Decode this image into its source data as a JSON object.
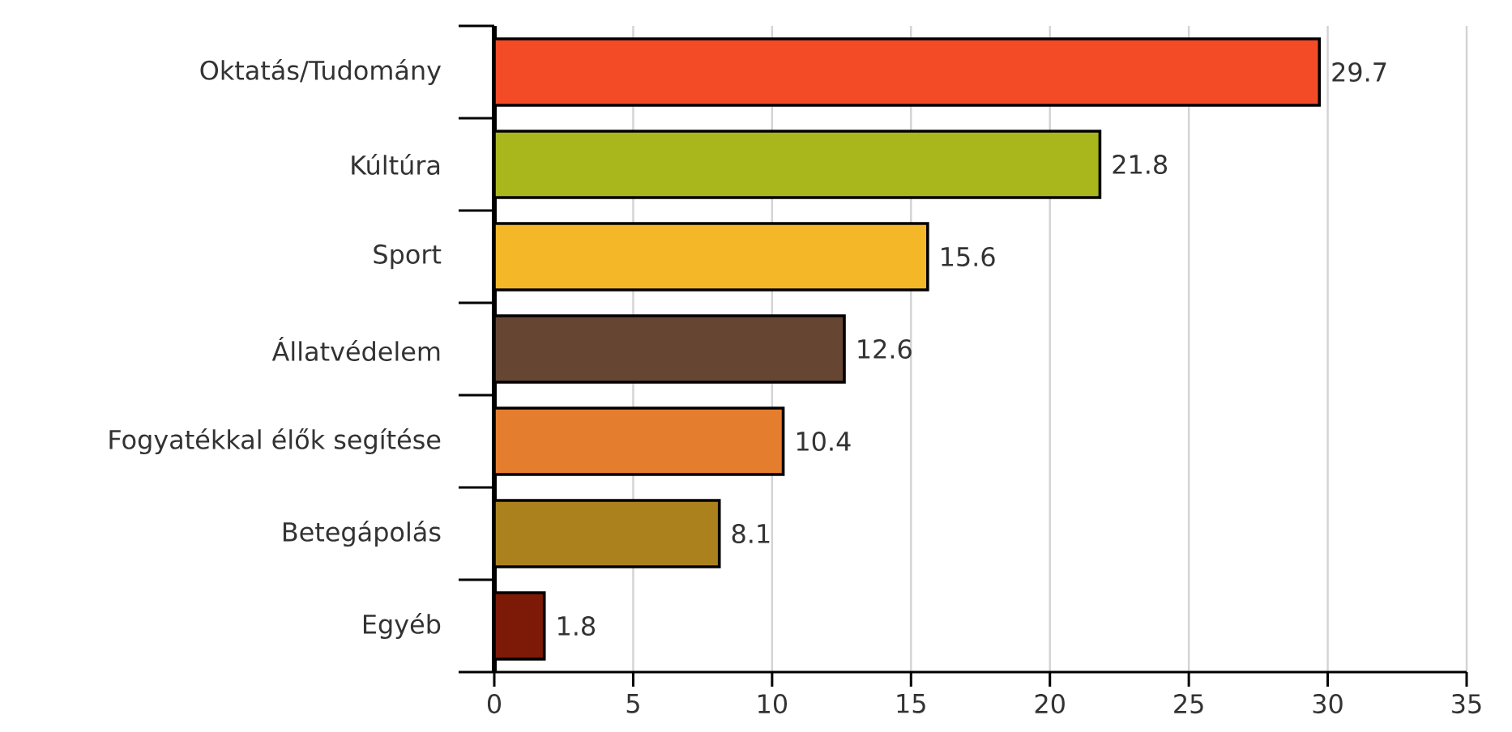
{
  "chart_data": {
    "type": "bar",
    "orientation": "horizontal",
    "categories": [
      "Oktatás/Tudomány",
      "Kúltúra",
      "Sport",
      "Állatvédelem",
      "Fogyatékkal élők segítése",
      "Betegápolás",
      "Egyéb"
    ],
    "values": [
      29.7,
      21.8,
      15.6,
      12.6,
      10.4,
      8.1,
      1.8
    ],
    "colors": [
      "#f44b27",
      "#a9b71d",
      "#f4b728",
      "#664532",
      "#e57d2e",
      "#ab811e",
      "#7d1a07"
    ],
    "xlim": [
      0,
      35
    ],
    "xticks": [
      0,
      5,
      10,
      15,
      20,
      25,
      30,
      35
    ],
    "grid": "x",
    "data_labels": true
  }
}
